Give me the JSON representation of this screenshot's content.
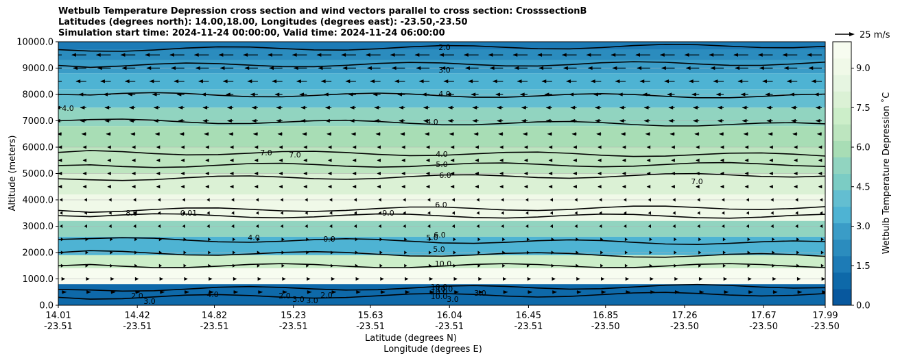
{
  "title": {
    "line1": "Wetbulb Temperature Depression cross section and wind vectors parallel to cross section: CrosssectionB",
    "line2": "Latitudes (degrees north): 14.00,18.00, Longitudes (degrees east): -23.50,-23.50",
    "line3": "Simulation start time: 2024-11-24 00:00:00, Valid time: 2024-11-24 06:00:00"
  },
  "chart_data": {
    "type": "contour",
    "ylabel": "Altitude (meters)",
    "xlabel_lat": "Latitude (degrees N)",
    "xlabel_lon": "Longitude (degrees E)",
    "ylim": [
      0,
      10000
    ],
    "yticks": [
      "0.0",
      "1000.0",
      "2000.0",
      "3000.0",
      "4000.0",
      "5000.0",
      "6000.0",
      "7000.0",
      "8000.0",
      "9000.0",
      "10000.0"
    ],
    "xticks": [
      {
        "lat": "14.01",
        "lon": "-23.51"
      },
      {
        "lat": "14.42",
        "lon": "-23.51"
      },
      {
        "lat": "14.82",
        "lon": "-23.51"
      },
      {
        "lat": "15.23",
        "lon": "-23.51"
      },
      {
        "lat": "15.63",
        "lon": "-23.51"
      },
      {
        "lat": "16.04",
        "lon": "-23.51"
      },
      {
        "lat": "16.45",
        "lon": "-23.51"
      },
      {
        "lat": "16.85",
        "lon": "-23.50"
      },
      {
        "lat": "17.26",
        "lon": "-23.50"
      },
      {
        "lat": "17.67",
        "lon": "-23.50"
      },
      {
        "lat": "17.99",
        "lon": "-23.50"
      }
    ],
    "colorbar": {
      "label": "Wetbulb Temperature Depression ˚C",
      "ticks": [
        "0.0",
        "1.5",
        "3.0",
        "4.5",
        "6.0",
        "7.5",
        "9.0"
      ],
      "range": [
        0,
        10
      ],
      "colors": [
        "#08589e",
        "#0e69a9",
        "#1d7bb6",
        "#2b8cbe",
        "#3a9cc7",
        "#4eb3d3",
        "#63bed1",
        "#7bccc4",
        "#91d4c0",
        "#a8ddb5",
        "#bde5bf",
        "#cceec9",
        "#dbf1d5",
        "#e6f5e1",
        "#f0f9e8",
        "#f7fcf0"
      ]
    },
    "layers": [
      {
        "top": 10000,
        "bottom": 9700,
        "value": 1.5
      },
      {
        "top": 9700,
        "bottom": 9300,
        "value": 2.2
      },
      {
        "top": 9300,
        "bottom": 8800,
        "value": 2.8
      },
      {
        "top": 8800,
        "bottom": 8200,
        "value": 3.5
      },
      {
        "top": 8200,
        "bottom": 7500,
        "value": 4.2
      },
      {
        "top": 7500,
        "bottom": 6800,
        "value": 5.2
      },
      {
        "top": 6800,
        "bottom": 6000,
        "value": 6.0
      },
      {
        "top": 6000,
        "bottom": 5000,
        "value": 6.6
      },
      {
        "top": 5000,
        "bottom": 4200,
        "value": 7.5
      },
      {
        "top": 4200,
        "bottom": 3200,
        "value": 9.0
      },
      {
        "top": 3200,
        "bottom": 2600,
        "value": 5.5
      },
      {
        "top": 2600,
        "bottom": 1900,
        "value": 3.5
      },
      {
        "top": 1900,
        "bottom": 1400,
        "value": 7.0
      },
      {
        "top": 1400,
        "bottom": 800,
        "value": 10.0
      },
      {
        "top": 800,
        "bottom": 0,
        "value": 1.0
      }
    ],
    "contour_levels": [
      {
        "value": "2.0",
        "altitude": 9700
      },
      {
        "value": "3.0",
        "altitude": 9100
      },
      {
        "value": "4.0",
        "altitude": 8000
      },
      {
        "value": "4.0",
        "altitude": 7000
      },
      {
        "value": "5.0",
        "altitude": 5800
      },
      {
        "value": "6.0",
        "altitude": 5300
      },
      {
        "value": "7.0",
        "altitude": 4800
      },
      {
        "value": "8.0",
        "altitude": 3600
      },
      {
        "value": "9.0",
        "altitude": 3400
      },
      {
        "value": "6.0",
        "altitude": 2500
      },
      {
        "value": "5.0",
        "altitude": 2000
      },
      {
        "value": "10.0",
        "altitude": 1500
      },
      {
        "value": "10.0",
        "altitude": 600
      },
      {
        "value": "2.0",
        "altitude": 300
      }
    ],
    "contour_labels": [
      "2.0",
      "3.0",
      "4.0",
      "4.0",
      "4.0",
      "5.0",
      "6.0",
      "7.0",
      "7.0",
      "7.0",
      "6.0",
      "8.0",
      "9.0",
      "10.0",
      "10.0",
      "0.01",
      "4.0",
      "4.0",
      "6.0",
      "5.0",
      "0.0",
      "5.0",
      "10.0",
      "10.0",
      "10.0",
      "4.0",
      "2.0",
      "2.0",
      "2.0",
      "3.0",
      "3.0",
      "3.0",
      "3.0",
      "3.0"
    ],
    "quiver_key": {
      "label": "25 m/s",
      "value": 25
    },
    "wind_rows": [
      {
        "altitude": 9500,
        "u": -10
      },
      {
        "altitude": 9000,
        "u": -9
      },
      {
        "altitude": 8500,
        "u": -7
      },
      {
        "altitude": 8000,
        "u": -5
      },
      {
        "altitude": 7500,
        "u": -4
      },
      {
        "altitude": 7000,
        "u": -4
      },
      {
        "altitude": 6500,
        "u": -3
      },
      {
        "altitude": 6000,
        "u": -2
      },
      {
        "altitude": 5500,
        "u": -2
      },
      {
        "altitude": 5000,
        "u": -2
      },
      {
        "altitude": 4500,
        "u": -2
      },
      {
        "altitude": 4000,
        "u": -1
      },
      {
        "altitude": 3500,
        "u": -1
      },
      {
        "altitude": 3000,
        "u": -1
      },
      {
        "altitude": 2500,
        "u": 1
      },
      {
        "altitude": 2000,
        "u": 1
      },
      {
        "altitude": 1500,
        "u": 1
      },
      {
        "altitude": 1000,
        "u": 2
      },
      {
        "altitude": 500,
        "u": 3
      }
    ]
  }
}
